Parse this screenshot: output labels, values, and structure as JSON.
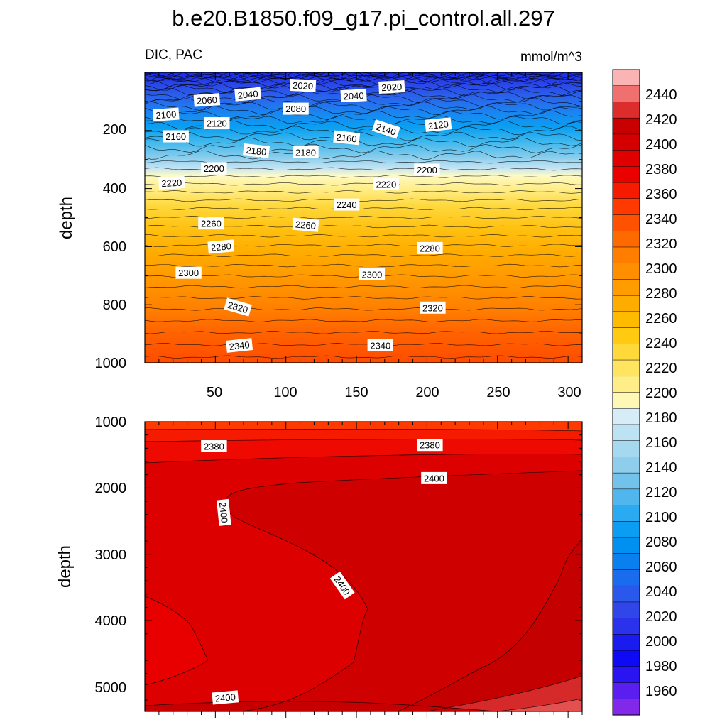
{
  "title": "b.e20.B1850.f09_g17.pi_control.all.297",
  "left_subtitle": "DIC, PAC",
  "right_subtitle": "mmol/m^3",
  "chart_data": [
    {
      "type": "heatmap",
      "panel": "upper",
      "variable": "DIC",
      "region": "PAC",
      "units": "mmol/m^3",
      "xlim": [
        0,
        310
      ],
      "ylim": [
        1000,
        0
      ],
      "ylabel": "depth",
      "xlabel": "",
      "xticks": [
        50,
        100,
        150,
        200,
        250,
        300
      ],
      "yticks": [
        200,
        400,
        600,
        800,
        1000
      ],
      "grid": false,
      "depth_profile": {
        "depth": [
          0,
          25,
          50,
          100,
          150,
          200,
          250,
          300,
          350,
          400,
          500,
          600,
          700,
          800,
          900,
          1000
        ],
        "dic": [
          1985,
          2008,
          2022,
          2055,
          2095,
          2130,
          2165,
          2190,
          2210,
          2222,
          2255,
          2282,
          2302,
          2320,
          2338,
          2352
        ]
      },
      "contour_labels": [
        {
          "value": "2020",
          "x": 112,
          "depth": 45
        },
        {
          "value": "2020",
          "x": 175,
          "depth": 50
        },
        {
          "value": "2040",
          "x": 73,
          "depth": 75
        },
        {
          "value": "2040",
          "x": 148,
          "depth": 80
        },
        {
          "value": "2060",
          "x": 44,
          "depth": 95
        },
        {
          "value": "2080",
          "x": 107,
          "depth": 125
        },
        {
          "value": "2100",
          "x": 15,
          "depth": 145
        },
        {
          "value": "2120",
          "x": 51,
          "depth": 175
        },
        {
          "value": "2120",
          "x": 208,
          "depth": 180
        },
        {
          "value": "2140",
          "x": 171,
          "depth": 195
        },
        {
          "value": "2160",
          "x": 22,
          "depth": 220
        },
        {
          "value": "2160",
          "x": 143,
          "depth": 225
        },
        {
          "value": "2180",
          "x": 79,
          "depth": 270
        },
        {
          "value": "2180",
          "x": 114,
          "depth": 275
        },
        {
          "value": "2200",
          "x": 49,
          "depth": 330
        },
        {
          "value": "2200",
          "x": 200,
          "depth": 335
        },
        {
          "value": "2220",
          "x": 19,
          "depth": 380
        },
        {
          "value": "2220",
          "x": 171,
          "depth": 385
        },
        {
          "value": "2240",
          "x": 143,
          "depth": 455
        },
        {
          "value": "2260",
          "x": 47,
          "depth": 520
        },
        {
          "value": "2260",
          "x": 114,
          "depth": 525
        },
        {
          "value": "2280",
          "x": 54,
          "depth": 600
        },
        {
          "value": "2280",
          "x": 202,
          "depth": 605
        },
        {
          "value": "2300",
          "x": 31,
          "depth": 690
        },
        {
          "value": "2300",
          "x": 161,
          "depth": 695
        },
        {
          "value": "2320",
          "x": 66,
          "depth": 808
        },
        {
          "value": "2320",
          "x": 204,
          "depth": 810
        },
        {
          "value": "2340",
          "x": 67,
          "depth": 940
        },
        {
          "value": "2340",
          "x": 167,
          "depth": 940
        }
      ]
    },
    {
      "type": "heatmap",
      "panel": "lower",
      "variable": "DIC",
      "region": "PAC",
      "units": "mmol/m^3",
      "xlim": [
        0,
        310
      ],
      "ylim": [
        5370,
        1000
      ],
      "ylabel": "depth",
      "xlabel": "",
      "yticks": [
        1000,
        2000,
        3000,
        4000,
        5000
      ],
      "grid": false,
      "contour_labels": [
        {
          "value": "2380",
          "x": 49,
          "depth": 1370
        },
        {
          "value": "2380",
          "x": 202,
          "depth": 1350
        },
        {
          "value": "2400",
          "x": 205,
          "depth": 1850
        },
        {
          "value": "2400",
          "x": 56,
          "depth": 2370
        },
        {
          "value": "2400",
          "x": 140,
          "depth": 3470
        },
        {
          "value": "2400",
          "x": 57,
          "depth": 5160
        }
      ]
    }
  ],
  "colorbar": {
    "levels": [
      "2440",
      "2420",
      "2400",
      "2380",
      "2360",
      "2340",
      "2320",
      "2300",
      "2280",
      "2260",
      "2240",
      "2220",
      "2200",
      "2180",
      "2160",
      "2140",
      "2120",
      "2100",
      "2080",
      "2060",
      "2040",
      "2020",
      "2000",
      "1980",
      "1960"
    ],
    "colors_top_to_bottom": [
      "#fab4b4",
      "#f07070",
      "#dc2c2c",
      "#c80000",
      "#d40000",
      "#e10000",
      "#eb0000",
      "#f51a00",
      "#ff3a00",
      "#ff5200",
      "#ff6a00",
      "#ff7e00",
      "#ff8e00",
      "#ff9d00",
      "#ffac00",
      "#ffbb00",
      "#ffca10",
      "#ffd83a",
      "#ffe460",
      "#ffee88",
      "#fff8b4",
      "#d6ecf6",
      "#bde2f3",
      "#a6d8f0",
      "#8ecdec",
      "#73c2ec",
      "#52b6ee",
      "#2aaaf0",
      "#0a9df2",
      "#0090f2",
      "#0a80f0",
      "#1a6cef",
      "#2a58ed",
      "#3046e8",
      "#2a32eb",
      "#1a1cef",
      "#0e0af5",
      "#2a14f2",
      "#5a1ef0",
      "#8228ea"
    ]
  }
}
